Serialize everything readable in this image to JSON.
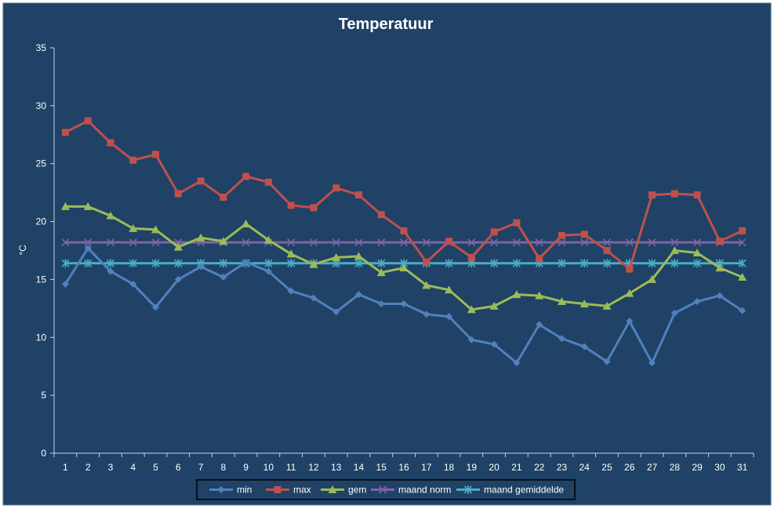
{
  "chart_data": {
    "type": "line",
    "title": "Temperatuur",
    "xlabel": "",
    "ylabel": "°C",
    "x": [
      1,
      2,
      3,
      4,
      5,
      6,
      7,
      8,
      9,
      10,
      11,
      12,
      13,
      14,
      15,
      16,
      17,
      18,
      19,
      20,
      21,
      22,
      23,
      24,
      25,
      26,
      27,
      28,
      29,
      30,
      31
    ],
    "ylim": [
      0,
      35
    ],
    "yticks": [
      0,
      5,
      10,
      15,
      20,
      25,
      30,
      35
    ],
    "grid": false,
    "legend_position": "bottom",
    "background": "#1f4266",
    "series": [
      {
        "name": "min",
        "color": "#4f81bd",
        "marker": "diamond",
        "values": [
          14.6,
          17.7,
          15.7,
          14.6,
          12.6,
          15.0,
          16.1,
          15.2,
          16.5,
          15.7,
          14.0,
          13.4,
          12.2,
          13.7,
          12.9,
          12.9,
          12.0,
          11.8,
          9.8,
          9.4,
          7.8,
          11.1,
          9.9,
          9.2,
          7.9,
          11.4,
          7.8,
          12.1,
          13.1,
          13.6,
          12.3
        ]
      },
      {
        "name": "max",
        "color": "#c0504d",
        "marker": "square",
        "values": [
          27.7,
          28.7,
          26.8,
          25.3,
          25.8,
          22.4,
          23.5,
          22.1,
          23.9,
          23.4,
          21.4,
          21.2,
          22.9,
          22.3,
          20.6,
          19.2,
          16.5,
          18.3,
          16.9,
          19.1,
          19.9,
          16.8,
          18.8,
          18.9,
          17.5,
          15.9,
          22.3,
          22.4,
          22.3,
          18.3,
          19.2
        ]
      },
      {
        "name": "gem",
        "color": "#9bbb59",
        "marker": "triangle",
        "values": [
          21.3,
          21.3,
          20.5,
          19.4,
          19.3,
          17.8,
          18.6,
          18.3,
          19.8,
          18.4,
          17.2,
          16.3,
          16.9,
          17.0,
          15.6,
          16.0,
          14.5,
          14.1,
          12.4,
          12.7,
          13.7,
          13.6,
          13.1,
          12.9,
          12.7,
          13.8,
          15.0,
          17.5,
          17.3,
          16.0,
          15.2
        ]
      },
      {
        "name": "maand norm",
        "color": "#8064a2",
        "marker": "x",
        "values": [
          18.2,
          18.2,
          18.2,
          18.2,
          18.2,
          18.2,
          18.2,
          18.2,
          18.2,
          18.2,
          18.2,
          18.2,
          18.2,
          18.2,
          18.2,
          18.2,
          18.2,
          18.2,
          18.2,
          18.2,
          18.2,
          18.2,
          18.2,
          18.2,
          18.2,
          18.2,
          18.2,
          18.2,
          18.2,
          18.2,
          18.2
        ]
      },
      {
        "name": "maand gemiddelde",
        "color": "#4bacc6",
        "marker": "star",
        "values": [
          16.4,
          16.4,
          16.4,
          16.4,
          16.4,
          16.4,
          16.4,
          16.4,
          16.4,
          16.4,
          16.4,
          16.4,
          16.4,
          16.4,
          16.4,
          16.4,
          16.4,
          16.4,
          16.4,
          16.4,
          16.4,
          16.4,
          16.4,
          16.4,
          16.4,
          16.4,
          16.4,
          16.4,
          16.4,
          16.4,
          16.4
        ]
      }
    ]
  }
}
